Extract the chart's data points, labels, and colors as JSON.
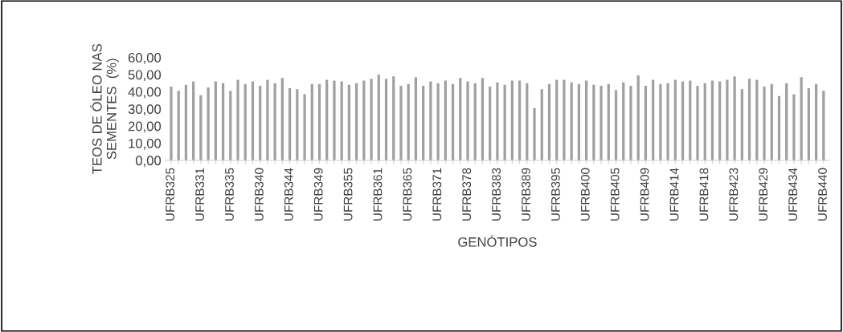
{
  "chart_data": {
    "type": "bar",
    "xlabel": "GENÓTIPOS",
    "ylabel": "TEOS DE ÓLEO NAS\nSEMENTES  (%)",
    "categories": [
      "UFRB325",
      null,
      null,
      null,
      "UFRB331",
      null,
      null,
      null,
      "UFRB335",
      null,
      null,
      null,
      "UFRB340",
      null,
      null,
      null,
      "UFRB344",
      null,
      null,
      null,
      "UFRB349",
      null,
      null,
      null,
      "UFRB355",
      null,
      null,
      null,
      "UFRB361",
      null,
      null,
      null,
      "UFRB365",
      null,
      null,
      null,
      "UFRB371",
      null,
      null,
      null,
      "UFRB378",
      null,
      null,
      null,
      "UFRB383",
      null,
      null,
      null,
      "UFRB389",
      null,
      null,
      null,
      "UFRB395",
      null,
      null,
      null,
      "UFRB400",
      null,
      null,
      null,
      "UFRB405",
      null,
      null,
      null,
      "UFRB409",
      null,
      null,
      null,
      "UFRB414",
      null,
      null,
      null,
      "UFRB418",
      null,
      null,
      null,
      "UFRB423",
      null,
      null,
      null,
      "UFRB429",
      null,
      null,
      null,
      "UFRB434",
      null,
      null,
      null,
      "UFRB440"
    ],
    "values": [
      43,
      40.5,
      44,
      46,
      38,
      42.5,
      46,
      45,
      40.5,
      47,
      44.5,
      46,
      43.5,
      47,
      45,
      48,
      42,
      41.5,
      38.5,
      44.5,
      44.5,
      47,
      46.5,
      46,
      44,
      45,
      46.5,
      47.5,
      50,
      47.5,
      49,
      43.5,
      44.5,
      48.5,
      43.5,
      46,
      45,
      46.5,
      44.5,
      48,
      46,
      45,
      48,
      43,
      45.5,
      44,
      46.5,
      46.5,
      45,
      30.5,
      41.5,
      44.5,
      47,
      47,
      45.5,
      44.5,
      46.5,
      44,
      43.5,
      44.5,
      41,
      45.5,
      43.5,
      49.5,
      43.5,
      47,
      44.5,
      45,
      47,
      46,
      46.5,
      43.5,
      45,
      46.5,
      46,
      47,
      49,
      41.5,
      47.5,
      47,
      43,
      44.5,
      37.5,
      45,
      38.5,
      48.5,
      42,
      44.5,
      40.5
    ],
    "color": "#a0a0a0",
    "ylim": [
      0,
      60
    ],
    "yticks": [
      {
        "value": 0,
        "label": "0,00"
      },
      {
        "value": 10,
        "label": "10,00"
      },
      {
        "value": 20,
        "label": "20,00"
      },
      {
        "value": 30,
        "label": "30,00"
      },
      {
        "value": 40,
        "label": "40,00"
      },
      {
        "value": 50,
        "label": "50,00"
      },
      {
        "value": 60,
        "label": "60,00"
      }
    ],
    "grid": false,
    "legend": false
  }
}
